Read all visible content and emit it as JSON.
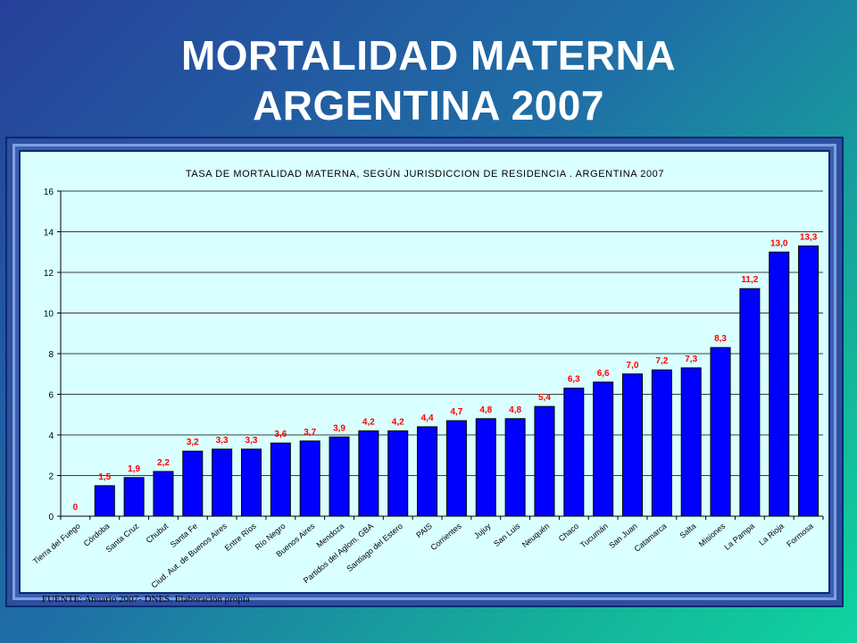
{
  "slide": {
    "title_line1": "MORTALIDAD MATERNA",
    "title_line2": "ARGENTINA 2007",
    "source": "FUENTE:  Anuario 2007- DNES.  Elaboración propia"
  },
  "colors": {
    "bar_fill": "#0000ff",
    "bar_stroke": "#000000",
    "data_label": "#ff0000",
    "plot_bg": "#d9ffff",
    "title_text": "#ffffff"
  },
  "chart_data": {
    "type": "bar",
    "title": "TASA DE MORTALIDAD MATERNA, SEGÚN JURISDICCION DE RESIDENCIA . ARGENTINA 2007",
    "xlabel": "",
    "ylabel": "",
    "ylim": [
      0,
      16
    ],
    "yticks": [
      0,
      2,
      4,
      6,
      8,
      10,
      12,
      14,
      16
    ],
    "grid": true,
    "legend": "none",
    "categories": [
      "Tierra del Fuego",
      "Córdoba",
      "Santa Cruz",
      "Chubut",
      "Santa Fe",
      "Ciud. Aut. de Buenos Aires",
      "Entre Ríos",
      "Río Negro",
      "Buenos Aires",
      "Mendoza",
      "Partidos del Aglom. GBA",
      "Santiago del Estero",
      "PAIS",
      "Corrientes",
      "Jujuy",
      "San Luis",
      "Neuquén",
      "Chaco",
      "Tucumán",
      "San Juan",
      "Catamarca",
      "Salta",
      "Misiones",
      "La Pampa",
      "La Rioja",
      "Formosa"
    ],
    "values": [
      0,
      1.5,
      1.9,
      2.2,
      3.2,
      3.3,
      3.3,
      3.6,
      3.7,
      3.9,
      4.2,
      4.2,
      4.4,
      4.7,
      4.8,
      4.8,
      5.4,
      6.3,
      6.6,
      7.0,
      7.2,
      7.3,
      8.3,
      11.2,
      13.0,
      13.3
    ],
    "data_labels": [
      "0",
      "1,5",
      "1,9",
      "2,2",
      "3,2",
      "3,3",
      "3,3",
      "3,6",
      "3,7",
      "3,9",
      "4,2",
      "4,2",
      "4,4",
      "4,7",
      "4,8",
      "4,8",
      "5,4",
      "6,3",
      "6,6",
      "7,0",
      "7,2",
      "7,3",
      "8,3",
      "11,2",
      "13,0",
      "13,3"
    ]
  }
}
